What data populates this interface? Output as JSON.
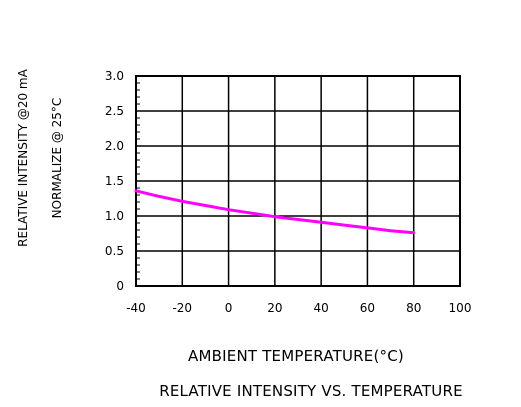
{
  "chart_data": {
    "type": "line",
    "title": "RELATIVE INTENSITY VS. TEMPERATURE",
    "xlabel": "AMBIENT TEMPERATURE(°C)",
    "ylabel": "RELATIVE INTENSITY @20 mA",
    "ylabel2": "NORMALIZE @ 25°C",
    "xlim": [
      -40,
      100
    ],
    "ylim": [
      0,
      3.0
    ],
    "x_ticks": [
      -40,
      -20,
      0,
      20,
      40,
      60,
      80,
      100
    ],
    "y_ticks": [
      0,
      0.5,
      1.0,
      1.5,
      2.0,
      2.5,
      3.0
    ],
    "x_tick_labels": [
      "-40",
      "-20",
      "0",
      "20",
      "40",
      "60",
      "80",
      "100"
    ],
    "y_tick_labels": [
      "0",
      "0.5",
      "1.0",
      "1.5",
      "2.0",
      "2.5",
      "3.0"
    ],
    "grid": true,
    "series": [
      {
        "color": "#ff00ff",
        "x": [
          -40,
          -30,
          -20,
          -10,
          0,
          10,
          20,
          30,
          40,
          50,
          60,
          70,
          80
        ],
        "y": [
          1.36,
          1.28,
          1.21,
          1.15,
          1.09,
          1.04,
          0.99,
          0.95,
          0.91,
          0.87,
          0.83,
          0.79,
          0.76
        ]
      }
    ]
  }
}
